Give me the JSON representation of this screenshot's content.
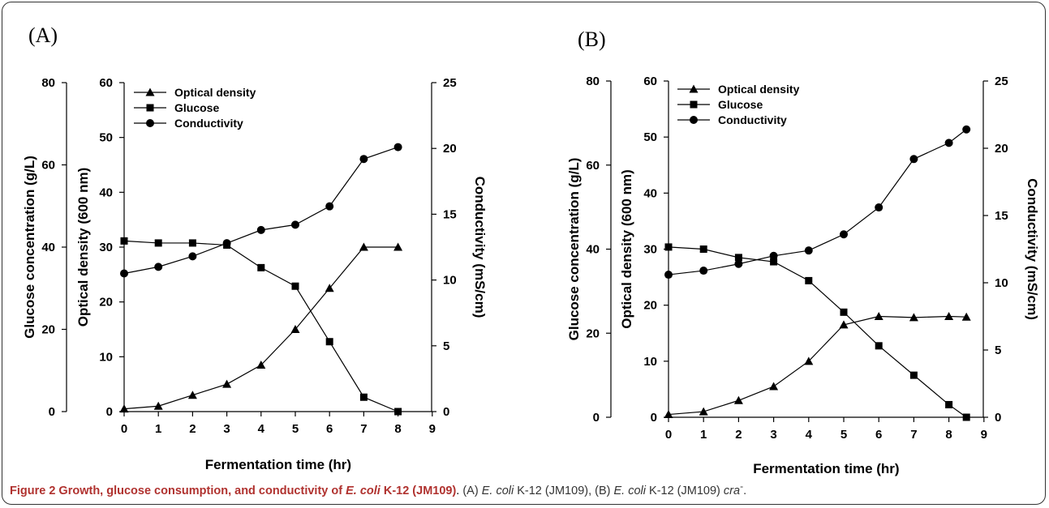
{
  "caption": {
    "title_prefix": "Figure 2 Growth, glucose consumption, and conductivity of ",
    "title_organism": "E. coli",
    "title_suffix": " K-12 (JM109)",
    "title_end": ".",
    "sub_a_label": " (A) ",
    "sub_a_organism": "E. coli",
    "sub_a_strain": " K-12 (JM109), (B) ",
    "sub_b_organism": "E. coli",
    "sub_b_strain": " K-12 (JM109) ",
    "sub_b_mutant": "cra",
    "sub_b_sup": "-",
    "sub_end": "."
  },
  "colors": {
    "ink": "#000000",
    "frame": "#333333",
    "caption_title": "#b0322f"
  },
  "chart_data": [
    {
      "panel": "(A)",
      "type": "line",
      "xlabel": "Fermentation time (hr)",
      "xlim": [
        0,
        9
      ],
      "xticks": [
        0,
        1,
        2,
        3,
        4,
        5,
        6,
        7,
        8,
        9
      ],
      "axes": {
        "glucose": {
          "label": "Glucose concentration (g/L)",
          "lim": [
            0,
            80
          ],
          "ticks": [
            0,
            20,
            40,
            60,
            80
          ]
        },
        "od": {
          "label": "Optical density (600 nm)",
          "lim": [
            0,
            60
          ],
          "ticks": [
            0,
            10,
            20,
            30,
            40,
            50,
            60
          ]
        },
        "cond": {
          "label": "Conductivity (mS/cm)",
          "lim": [
            0,
            25
          ],
          "ticks": [
            0,
            5,
            10,
            15,
            20,
            25
          ]
        }
      },
      "legend": [
        "Optical density",
        "Glucose",
        "Conductivity"
      ],
      "legend_position": "top-left",
      "series": [
        {
          "name": "Optical density",
          "marker": "triangle",
          "axis": "od",
          "x": [
            0,
            1,
            2,
            3,
            4,
            5,
            6,
            7,
            8
          ],
          "y": [
            0.5,
            1,
            3,
            5,
            8.5,
            15,
            22.5,
            30,
            30
          ]
        },
        {
          "name": "Glucose",
          "marker": "square",
          "axis": "glucose",
          "x": [
            0,
            1,
            2,
            3,
            4,
            5,
            6,
            7,
            8
          ],
          "y": [
            41.5,
            41,
            41,
            40.5,
            35,
            30.5,
            17,
            3.5,
            0
          ]
        },
        {
          "name": "Conductivity",
          "marker": "circle",
          "axis": "cond",
          "x": [
            0,
            1,
            2,
            3,
            4,
            5,
            6,
            7,
            8
          ],
          "y": [
            10.5,
            11,
            11.8,
            12.8,
            13.8,
            14.2,
            15.6,
            19.2,
            20.1
          ]
        }
      ]
    },
    {
      "panel": "(B)",
      "type": "line",
      "xlabel": "Fermentation time (hr)",
      "xlim": [
        0,
        9
      ],
      "xticks": [
        0,
        1,
        2,
        3,
        4,
        5,
        6,
        7,
        8,
        9
      ],
      "axes": {
        "glucose": {
          "label": "Glucose concentration (g/L)",
          "lim": [
            0,
            80
          ],
          "ticks": [
            0,
            20,
            40,
            60,
            80
          ]
        },
        "od": {
          "label": "Optical density (600 nm)",
          "lim": [
            0,
            60
          ],
          "ticks": [
            0,
            10,
            20,
            30,
            40,
            50,
            60
          ]
        },
        "cond": {
          "label": "Conductivity (mS/cm)",
          "lim": [
            0,
            25
          ],
          "ticks": [
            0,
            5,
            10,
            15,
            20,
            25
          ]
        }
      },
      "legend": [
        "Optical density",
        "Glucose",
        "Conductivity"
      ],
      "legend_position": "top-left",
      "series": [
        {
          "name": "Optical density",
          "marker": "triangle",
          "axis": "od",
          "x": [
            0,
            1,
            2,
            3,
            4,
            5,
            6,
            7,
            8,
            8.5
          ],
          "y": [
            0.5,
            1,
            3,
            5.5,
            10,
            16.5,
            18,
            17.8,
            18,
            17.9
          ]
        },
        {
          "name": "Glucose",
          "marker": "square",
          "axis": "glucose",
          "x": [
            0,
            1,
            2,
            3,
            4,
            5,
            6,
            7,
            8,
            8.5
          ],
          "y": [
            40.5,
            40,
            38,
            37,
            32.5,
            25,
            17,
            10,
            3,
            0
          ]
        },
        {
          "name": "Conductivity",
          "marker": "circle",
          "axis": "cond",
          "x": [
            0,
            1,
            2,
            3,
            4,
            5,
            6,
            7,
            8,
            8.5
          ],
          "y": [
            10.6,
            10.9,
            11.4,
            12,
            12.4,
            13.6,
            15.6,
            19.2,
            20.4,
            21.4
          ]
        }
      ]
    }
  ]
}
